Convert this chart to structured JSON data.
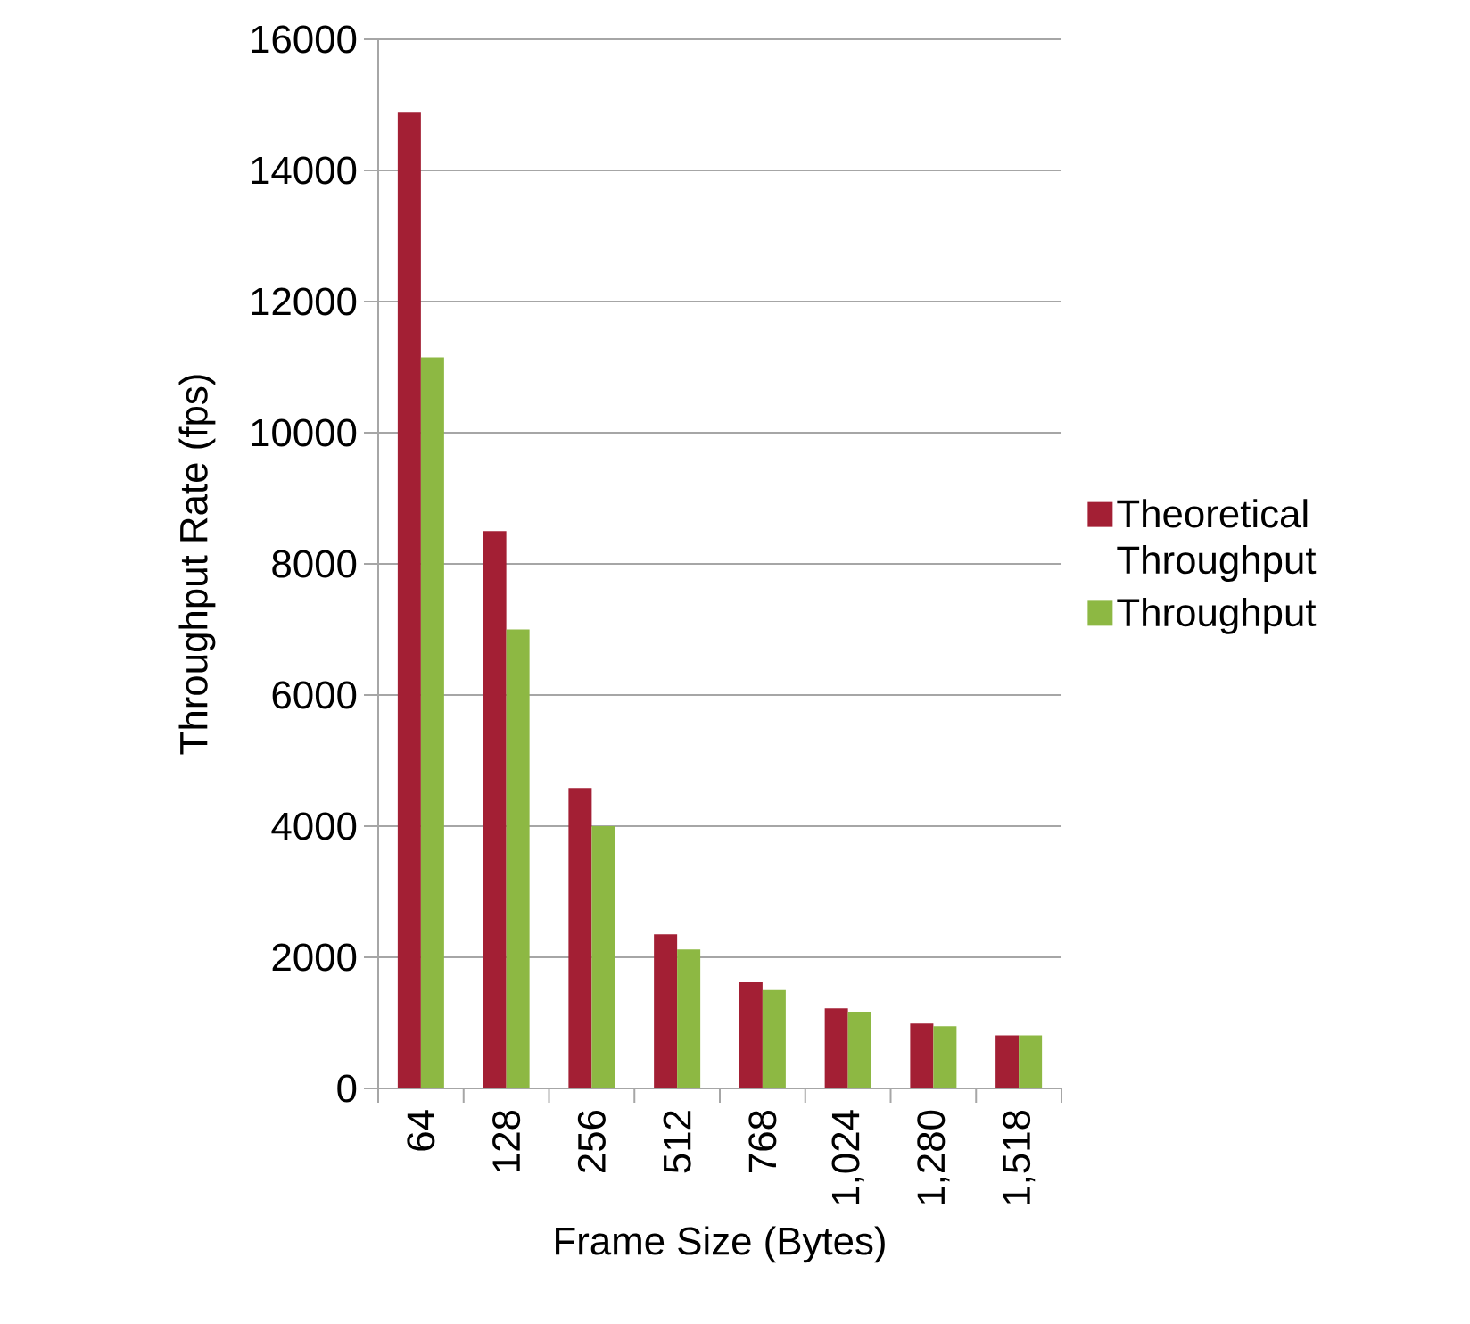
{
  "chart_data": {
    "type": "bar",
    "xlabel": "Frame Size (Bytes)",
    "ylabel": "Throughput Rate (fps)",
    "categories": [
      "64",
      "128",
      "256",
      "512",
      "768",
      "1,024",
      "1,280",
      "1,518"
    ],
    "series": [
      {
        "name": "Theoretical Throughput",
        "color": "#a31f34",
        "values": [
          14880,
          8500,
          4580,
          2350,
          1620,
          1220,
          990,
          810
        ]
      },
      {
        "name": "Throughput",
        "color": "#8db843",
        "values": [
          11150,
          7000,
          4000,
          2120,
          1500,
          1170,
          950,
          810
        ]
      }
    ],
    "ylim": [
      0,
      16000
    ],
    "yticks": [
      0,
      2000,
      4000,
      6000,
      8000,
      10000,
      12000,
      14000,
      16000
    ],
    "grid": "y",
    "legend": "right"
  }
}
